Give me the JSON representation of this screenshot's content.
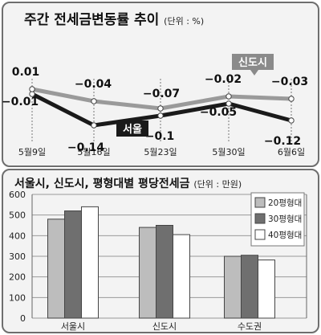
{
  "chart_data": [
    {
      "type": "line",
      "title": "주간 전세금변동률 추이",
      "unit": "(단위 : %)",
      "categories": [
        "5월9일",
        "5월16일",
        "5월23일",
        "5월30일",
        "6월6일"
      ],
      "series": [
        {
          "name": "서울",
          "values": [
            -0.01,
            -0.14,
            -0.1,
            -0.05,
            -0.12
          ],
          "color": "#1a1a1a"
        },
        {
          "name": "신도시",
          "values": [
            0.01,
            -0.04,
            -0.07,
            -0.02,
            -0.03
          ],
          "color": "#9a9a9a"
        }
      ],
      "data_labels": {
        "서울": [
          "−0.01",
          "−0.14",
          "−0.1",
          "−0.05",
          "−0.12"
        ],
        "신도시": [
          "0.01",
          "−0.04",
          "−0.07",
          "−0.02",
          "−0.03"
        ]
      },
      "grid": false
    },
    {
      "type": "bar",
      "title": "서울시, 신도시, 평형대별 평당전세금",
      "unit": "(단위 : 만원)",
      "categories": [
        "서울시",
        "신도시",
        "수도권"
      ],
      "series": [
        {
          "name": "20평형대",
          "values": [
            480,
            440,
            300
          ],
          "color": "#bdbdbd"
        },
        {
          "name": "30평형대",
          "values": [
            520,
            450,
            305
          ],
          "color": "#6f6f6f"
        },
        {
          "name": "40평형대",
          "values": [
            540,
            405,
            282
          ],
          "color": "#ffffff"
        }
      ],
      "ylim": [
        0,
        600
      ],
      "yticks": [
        "0",
        "100",
        "200",
        "300",
        "400",
        "500",
        "600"
      ],
      "legend": "top-right",
      "grid": true
    }
  ]
}
